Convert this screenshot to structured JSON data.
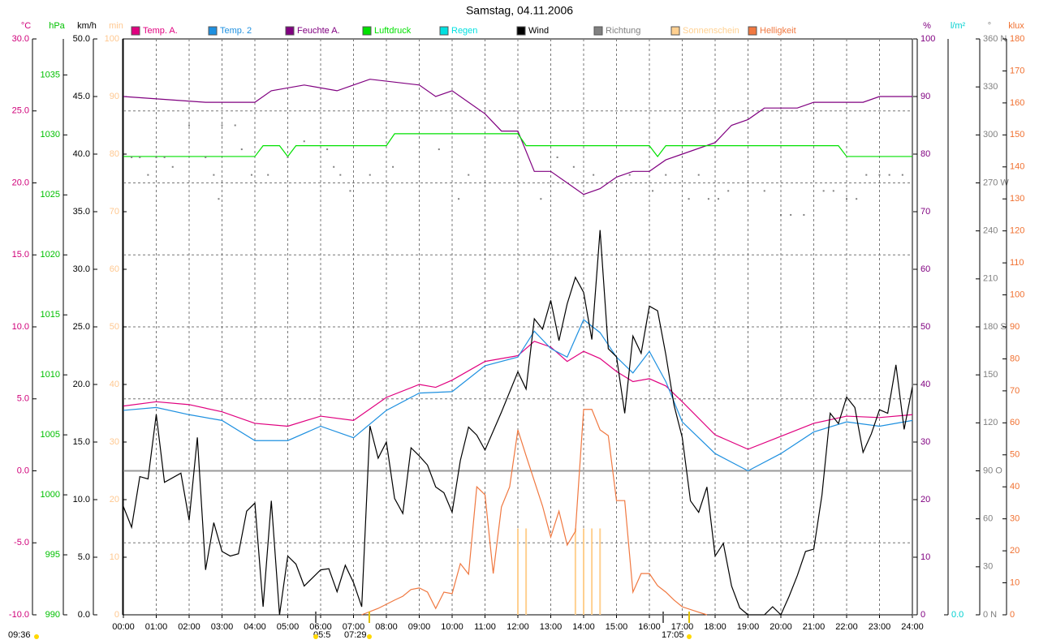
{
  "chart_data": {
    "type": "line",
    "title": "Samstag, 04.11.2006",
    "xlim": [
      0,
      24
    ],
    "xticks": [
      {
        "value": 0,
        "label": "00:00"
      },
      {
        "value": 1,
        "label": "01:00"
      },
      {
        "value": 2,
        "label": "02:00"
      },
      {
        "value": 3,
        "label": "03:00"
      },
      {
        "value": 4,
        "label": "04:00"
      },
      {
        "value": 5,
        "label": "05:00"
      },
      {
        "value": 6,
        "label": "06:00"
      },
      {
        "value": 7,
        "label": "07:00"
      },
      {
        "value": 8,
        "label": "08:00"
      },
      {
        "value": 9,
        "label": "09:00"
      },
      {
        "value": 10,
        "label": "10:00"
      },
      {
        "value": 11,
        "label": "11:00"
      },
      {
        "value": 12,
        "label": "12:00"
      },
      {
        "value": 13,
        "label": "13:00"
      },
      {
        "value": 14,
        "label": "14:00"
      },
      {
        "value": 15,
        "label": "15:00"
      },
      {
        "value": 16,
        "label": "16:00"
      },
      {
        "value": 17,
        "label": "17:00"
      },
      {
        "value": 18,
        "label": "18:00"
      },
      {
        "value": 19,
        "label": "19:00"
      },
      {
        "value": 20,
        "label": "20:00"
      },
      {
        "value": 21,
        "label": "21:00"
      },
      {
        "value": 22,
        "label": "22:00"
      },
      {
        "value": 23,
        "label": "23:00"
      },
      {
        "value": 24,
        "label": "24:00"
      }
    ],
    "grid": true,
    "axes": [
      {
        "unit": "°C",
        "side": "left",
        "color": "#d0007a",
        "lim": [
          -10,
          30
        ],
        "ticks": [
          {
            "value": -10,
            "label": "-10.0"
          },
          {
            "value": -5,
            "label": "-5.0"
          },
          {
            "value": 0,
            "label": "0.0"
          },
          {
            "value": 5,
            "label": "5.0"
          },
          {
            "value": 10,
            "label": "10.0"
          },
          {
            "value": 15,
            "label": "15.0"
          },
          {
            "value": 20,
            "label": "20.0"
          },
          {
            "value": 25,
            "label": "25.0"
          },
          {
            "value": 30,
            "label": "30.0"
          }
        ]
      },
      {
        "unit": "hPa",
        "side": "left",
        "color": "#00c000",
        "lim": [
          990,
          1038
        ],
        "ticks": [
          990,
          995,
          1000,
          1005,
          1010,
          1015,
          1020,
          1025,
          1030,
          1035
        ]
      },
      {
        "unit": "km/h",
        "side": "left",
        "color": "#000000",
        "lim": [
          0,
          50
        ],
        "ticks": [
          {
            "value": 0,
            "label": "0.0"
          },
          {
            "value": 5,
            "label": "5.0"
          },
          {
            "value": 10,
            "label": "10.0"
          },
          {
            "value": 15,
            "label": "15.0"
          },
          {
            "value": 20,
            "label": "20.0"
          },
          {
            "value": 25,
            "label": "25.0"
          },
          {
            "value": 30,
            "label": "30.0"
          },
          {
            "value": 35,
            "label": "35.0"
          },
          {
            "value": 40,
            "label": "40.0"
          },
          {
            "value": 45,
            "label": "45.0"
          },
          {
            "value": 50,
            "label": "50.0"
          }
        ]
      },
      {
        "unit": "min",
        "side": "left",
        "color": "#ffc890",
        "lim": [
          0,
          100
        ],
        "ticks": [
          0,
          10,
          20,
          30,
          40,
          50,
          60,
          70,
          80,
          90,
          100
        ]
      },
      {
        "unit": "%",
        "side": "right",
        "color": "#800080",
        "lim": [
          0,
          100
        ],
        "ticks": [
          0,
          10,
          20,
          30,
          40,
          50,
          60,
          70,
          80,
          90,
          100
        ]
      },
      {
        "unit": "l/m²",
        "side": "right",
        "color": "#00d0d0",
        "ticks": [
          {
            "value": 0,
            "label": "0.0"
          }
        ]
      },
      {
        "unit": "°",
        "side": "right",
        "color": "#808080",
        "lim": [
          0,
          360
        ],
        "ticks": [
          {
            "value": 0,
            "label": "0 N"
          },
          30,
          60,
          {
            "value": 90,
            "label": "90 O"
          },
          120,
          150,
          {
            "value": 180,
            "label": "180 S"
          },
          210,
          240,
          {
            "value": 270,
            "label": "270 W"
          },
          300,
          330,
          {
            "value": 360,
            "label": "360 N"
          }
        ]
      },
      {
        "unit": "klux",
        "side": "right",
        "color": "#f07030",
        "lim": [
          0,
          180
        ],
        "ticks": [
          0,
          10,
          20,
          30,
          40,
          50,
          60,
          70,
          80,
          90,
          100,
          110,
          120,
          130,
          140,
          150,
          160,
          170,
          180
        ]
      }
    ],
    "series": [
      {
        "name": "Temp. A.",
        "color": "#e0007f",
        "axis": 0,
        "style": "line",
        "x": [
          0,
          1,
          2,
          3,
          4,
          5,
          6,
          7,
          8,
          9,
          9.5,
          10,
          11,
          12,
          12.5,
          13,
          13.5,
          14,
          14.5,
          15,
          15.5,
          16,
          16.5,
          17,
          18,
          19,
          20,
          21,
          22,
          23,
          24
        ],
        "values": [
          4.5,
          4.8,
          4.6,
          4.1,
          3.3,
          3.1,
          3.8,
          3.5,
          5.1,
          6.0,
          5.8,
          6.3,
          7.6,
          8.0,
          9.0,
          8.6,
          7.6,
          8.3,
          7.8,
          6.9,
          6.2,
          6.4,
          5.9,
          4.8,
          2.5,
          1.5,
          2.4,
          3.3,
          3.8,
          3.7,
          3.9
        ]
      },
      {
        "name": "Temp. 2",
        "color": "#1e90e0",
        "axis": 0,
        "style": "line",
        "x": [
          0,
          1,
          2,
          3,
          4,
          5,
          6,
          7,
          8,
          9,
          10,
          11,
          12,
          12.5,
          13,
          13.5,
          14,
          14.5,
          15,
          15.5,
          16,
          16.5,
          17,
          18,
          19,
          20,
          21,
          22,
          23,
          24
        ],
        "values": [
          4.2,
          4.4,
          3.9,
          3.5,
          2.1,
          2.1,
          3.1,
          2.3,
          4.2,
          5.4,
          5.5,
          7.3,
          7.9,
          9.7,
          8.5,
          7.9,
          10.5,
          9.6,
          7.9,
          6.8,
          8.3,
          6.2,
          3.4,
          1.2,
          0.0,
          1.2,
          2.7,
          3.4,
          3.1,
          3.5
        ]
      },
      {
        "name": "Feuchte A.",
        "color": "#800080",
        "axis": 4,
        "style": "line",
        "x": [
          0,
          2.5,
          4,
          4.5,
          5.5,
          6.5,
          7,
          7.5,
          9,
          9.5,
          10,
          11,
          11.5,
          12,
          12.5,
          13,
          13.5,
          14,
          14.5,
          15,
          15.5,
          16,
          16.5,
          17,
          18,
          18.5,
          19,
          19.5,
          20,
          20.5,
          21,
          22.5,
          23,
          23.5,
          24
        ],
        "values": [
          90,
          89,
          89,
          91,
          92,
          91,
          92,
          93,
          92,
          90,
          91,
          87,
          84,
          84,
          77,
          77,
          75,
          73,
          74,
          76,
          77,
          77,
          79,
          80,
          82,
          85,
          86,
          88,
          88,
          88,
          89,
          89,
          90,
          90,
          90
        ]
      },
      {
        "name": "Luftdruck",
        "color": "#00e000",
        "axis": 1,
        "style": "line",
        "x": [
          0,
          4,
          4.25,
          4.75,
          5,
          5.25,
          8,
          8.25,
          12,
          12.25,
          16,
          16.25,
          16.5,
          21.75,
          22,
          24
        ],
        "values": [
          1028.2,
          1028.2,
          1029.1,
          1029.1,
          1028.2,
          1029.1,
          1029.1,
          1030.1,
          1030.1,
          1029.1,
          1029.1,
          1028.2,
          1029.1,
          1029.1,
          1028.2,
          1028.2
        ]
      },
      {
        "name": "Regen",
        "color": "#00e0e0",
        "axis": 5,
        "style": "line",
        "x": [],
        "values": []
      },
      {
        "name": "Wind",
        "color": "#000000",
        "axis": 2,
        "style": "line",
        "x": [
          0,
          0.25,
          0.5,
          0.75,
          1,
          1.25,
          1.75,
          2,
          2.25,
          2.5,
          2.75,
          3,
          3.25,
          3.5,
          3.75,
          4,
          4.25,
          4.5,
          4.75,
          5,
          5.25,
          5.5,
          5.75,
          6,
          6.25,
          6.5,
          6.75,
          7,
          7.25,
          7.5,
          7.75,
          8,
          8.25,
          8.5,
          8.75,
          9,
          9.25,
          9.5,
          9.75,
          10,
          10.25,
          10.5,
          10.75,
          11,
          11.5,
          12,
          12.25,
          12.5,
          12.75,
          13,
          13.25,
          13.5,
          13.75,
          14,
          14.25,
          14.5,
          14.75,
          15,
          15.25,
          15.5,
          15.75,
          16,
          16.25,
          16.5,
          16.75,
          17,
          17.25,
          17.5,
          17.75,
          18,
          18.25,
          18.5,
          18.75,
          19,
          19.5,
          19.75,
          20,
          20.25,
          20.5,
          20.75,
          21,
          21.25,
          21.5,
          21.75,
          22,
          22.25,
          22.5,
          22.75,
          23,
          23.25,
          23.5,
          23.75,
          24
        ],
        "values": [
          9.4,
          7.6,
          12,
          11.8,
          17.4,
          11.5,
          12.3,
          8.2,
          15.4,
          3.9,
          8.0,
          5.5,
          5.1,
          5.3,
          9,
          9.7,
          0.7,
          9.9,
          0,
          5.1,
          4.4,
          2.5,
          3.2,
          3.9,
          4,
          2,
          4.3,
          2.8,
          0.7,
          16.4,
          13.6,
          15,
          10.1,
          8.8,
          14.5,
          13.8,
          13,
          11.1,
          10.6,
          8.9,
          13.4,
          16.3,
          15.6,
          14.3,
          17.6,
          21.1,
          19.6,
          25.7,
          24.8,
          27.3,
          23.8,
          27,
          29.3,
          28,
          23.9,
          33.4,
          23.1,
          22.4,
          17.5,
          24.2,
          22.7,
          26.8,
          26.4,
          22.6,
          18.2,
          15.4,
          9.9,
          8.9,
          11.1,
          5.1,
          6.2,
          2.5,
          0.6,
          0,
          0,
          0.7,
          0,
          1.6,
          3.4,
          5.5,
          5.7,
          10.4,
          17.5,
          16.6,
          18.9,
          18,
          14.1,
          15.7,
          17.8,
          17.5,
          21.7,
          16.1,
          19.8
        ]
      },
      {
        "name": "Richtung",
        "color": "#808080",
        "axis": 6,
        "style": "dots",
        "x": [
          0.25,
          0.5,
          0.75,
          1,
          1.25,
          1.5,
          2,
          2.5,
          2.75,
          2.9,
          3,
          3.4,
          3.6,
          3.9,
          4.4,
          5,
          5.5,
          6.2,
          6.4,
          6.6,
          6.9,
          7.5,
          8.2,
          9.6,
          10.2,
          10.5,
          12.7,
          13.2,
          13.7,
          14.3,
          15.4,
          16.1,
          16.5,
          17.2,
          17.5,
          17.8,
          18.1,
          18.4,
          19.5,
          20,
          20.3,
          20.7,
          21.3,
          21.6,
          22,
          22.3,
          22.6,
          23,
          23.3,
          23.7
        ],
        "values": [
          286,
          286,
          275,
          286,
          286,
          280,
          306,
          286,
          275,
          260,
          306,
          306,
          291,
          275,
          275,
          286,
          296,
          291,
          280,
          275,
          265,
          275,
          280,
          291,
          260,
          275,
          260,
          286,
          280,
          275,
          275,
          265,
          275,
          260,
          275,
          260,
          260,
          265,
          265,
          250,
          250,
          250,
          265,
          265,
          260,
          260,
          275,
          275,
          275,
          275
        ]
      },
      {
        "name": "Sonnenschein",
        "color": "#ffd090",
        "axis": 3,
        "style": "bars",
        "x": [
          12,
          12.25,
          13.75,
          14,
          14.25,
          14.5
        ],
        "values": [
          15,
          15,
          15,
          15,
          15,
          15
        ]
      },
      {
        "name": "Helligkeit",
        "color": "#f07840",
        "axis": 7,
        "style": "line",
        "x": [
          7.25,
          7.75,
          8.25,
          8.5,
          8.75,
          9,
          9.25,
          9.5,
          9.75,
          10,
          10.25,
          10.5,
          10.75,
          11,
          11.25,
          11.5,
          11.75,
          12,
          12.25,
          12.75,
          13,
          13.25,
          13.5,
          13.75,
          14,
          14.25,
          14.5,
          14.75,
          15,
          15.25,
          15.5,
          15.75,
          16,
          16.25,
          16.5,
          16.75,
          17,
          17.5,
          17.75
        ],
        "values": [
          0,
          2,
          4.6,
          5.8,
          7.9,
          8.4,
          7.1,
          2,
          7.1,
          6.6,
          16,
          12.7,
          40,
          37.5,
          12.9,
          33.7,
          40,
          57.8,
          49.7,
          34,
          24.3,
          32.4,
          21.8,
          26.1,
          64.2,
          64.2,
          57.8,
          56,
          35.7,
          35.7,
          7.1,
          12.9,
          12.9,
          9.1,
          7.1,
          4.6,
          2.5,
          0.8,
          0
        ]
      }
    ],
    "annotations": [
      "09:36",
      "05:5",
      "07:29",
      "17:05"
    ]
  }
}
